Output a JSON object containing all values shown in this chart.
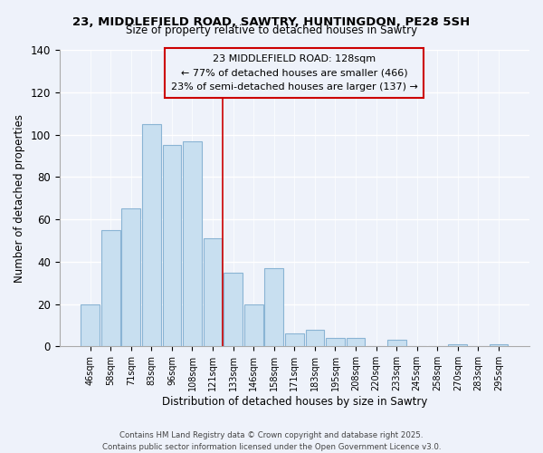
{
  "title": "23, MIDDLEFIELD ROAD, SAWTRY, HUNTINGDON, PE28 5SH",
  "subtitle": "Size of property relative to detached houses in Sawtry",
  "xlabel": "Distribution of detached houses by size in Sawtry",
  "ylabel": "Number of detached properties",
  "categories": [
    "46sqm",
    "58sqm",
    "71sqm",
    "83sqm",
    "96sqm",
    "108sqm",
    "121sqm",
    "133sqm",
    "146sqm",
    "158sqm",
    "171sqm",
    "183sqm",
    "195sqm",
    "208sqm",
    "220sqm",
    "233sqm",
    "245sqm",
    "258sqm",
    "270sqm",
    "283sqm",
    "295sqm"
  ],
  "values": [
    20,
    55,
    65,
    105,
    95,
    97,
    51,
    35,
    20,
    37,
    6,
    8,
    4,
    4,
    0,
    3,
    0,
    0,
    1,
    0,
    1
  ],
  "bar_color": "#c8dff0",
  "bar_edge_color": "#8ab4d4",
  "ylim": [
    0,
    140
  ],
  "yticks": [
    0,
    20,
    40,
    60,
    80,
    100,
    120,
    140
  ],
  "annotation_title": "23 MIDDLEFIELD ROAD: 128sqm",
  "annotation_line1": "← 77% of detached houses are smaller (466)",
  "annotation_line2": "23% of semi-detached houses are larger (137) →",
  "vline_x_index": 6.5,
  "bg_color": "#eef2fa",
  "footer_line1": "Contains HM Land Registry data © Crown copyright and database right 2025.",
  "footer_line2": "Contains public sector information licensed under the Open Government Licence v3.0."
}
